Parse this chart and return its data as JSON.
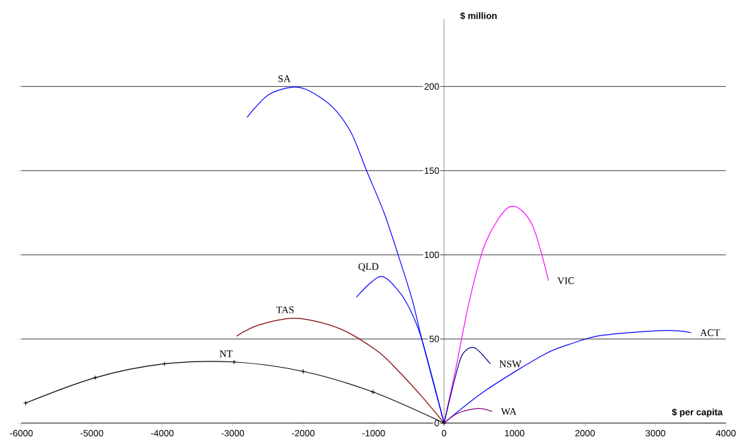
{
  "chart_data": {
    "type": "line",
    "xlabel": "$ per capita",
    "ylabel": "$ million",
    "xlim": [
      -6000,
      4000
    ],
    "ylim": [
      0,
      240
    ],
    "xticks": [
      -6000,
      -5000,
      -4000,
      -3000,
      -2000,
      -1000,
      0,
      1000,
      2000,
      3000,
      4000
    ],
    "yticks": [
      0,
      50,
      100,
      150,
      200
    ],
    "grid": "y",
    "legend": false,
    "series": [
      {
        "name": "SA",
        "color": "#0000ff",
        "x": [
          -2796,
          -2493,
          -2157,
          -1923,
          -1588,
          -1320,
          -1102,
          -851,
          -650,
          -450,
          -312,
          0
        ],
        "values": [
          181.7,
          195,
          199.6,
          197.6,
          188,
          172.6,
          150.2,
          124.9,
          99.7,
          73,
          49.2,
          0
        ]
      },
      {
        "name": "VIC",
        "color": "#ff00ff",
        "x": [
          0,
          169,
          365,
          593,
          935,
          1244,
          1483
        ],
        "values": [
          0,
          33,
          73.7,
          107.6,
          128.6,
          118.4,
          84.6
        ]
      },
      {
        "name": "QLD",
        "color": "#0000ff",
        "x": [
          -1245,
          -907,
          -650,
          -483,
          -312,
          0
        ],
        "values": [
          74.8,
          87.1,
          78.7,
          67.5,
          49.2,
          0
        ]
      },
      {
        "name": "TAS",
        "color": "#800000",
        "x": [
          -2945,
          -2627,
          -2106,
          -1486,
          -950,
          -650,
          -312,
          0
        ],
        "values": [
          51.7,
          58.3,
          62.3,
          56.2,
          42.9,
          31,
          15.6,
          0
        ]
      },
      {
        "name": "NSW",
        "color": "#000080",
        "x": [
          0,
          169,
          267,
          430,
          658
        ],
        "values": [
          0,
          29,
          41.2,
          44.8,
          35.1
        ]
      },
      {
        "name": "ACT",
        "color": "#0000ff",
        "x": [
          0,
          593,
          1408,
          1766,
          2222,
          3102,
          3509
        ],
        "values": [
          0,
          19.5,
          40.5,
          46.6,
          52,
          55,
          53.7
        ]
      },
      {
        "name": "NT",
        "color": "#000000",
        "marker": "cross",
        "x": [
          -5940,
          -4950,
          -3970,
          -2980,
          -2000,
          -1010,
          0
        ],
        "values": [
          11.9,
          27,
          35.2,
          36.3,
          30.7,
          18.5,
          0
        ]
      },
      {
        "name": "WA",
        "color": "#800080",
        "x": [
          0,
          202,
          479,
          684
        ],
        "values": [
          0,
          6,
          8.7,
          6.9
        ]
      }
    ]
  }
}
